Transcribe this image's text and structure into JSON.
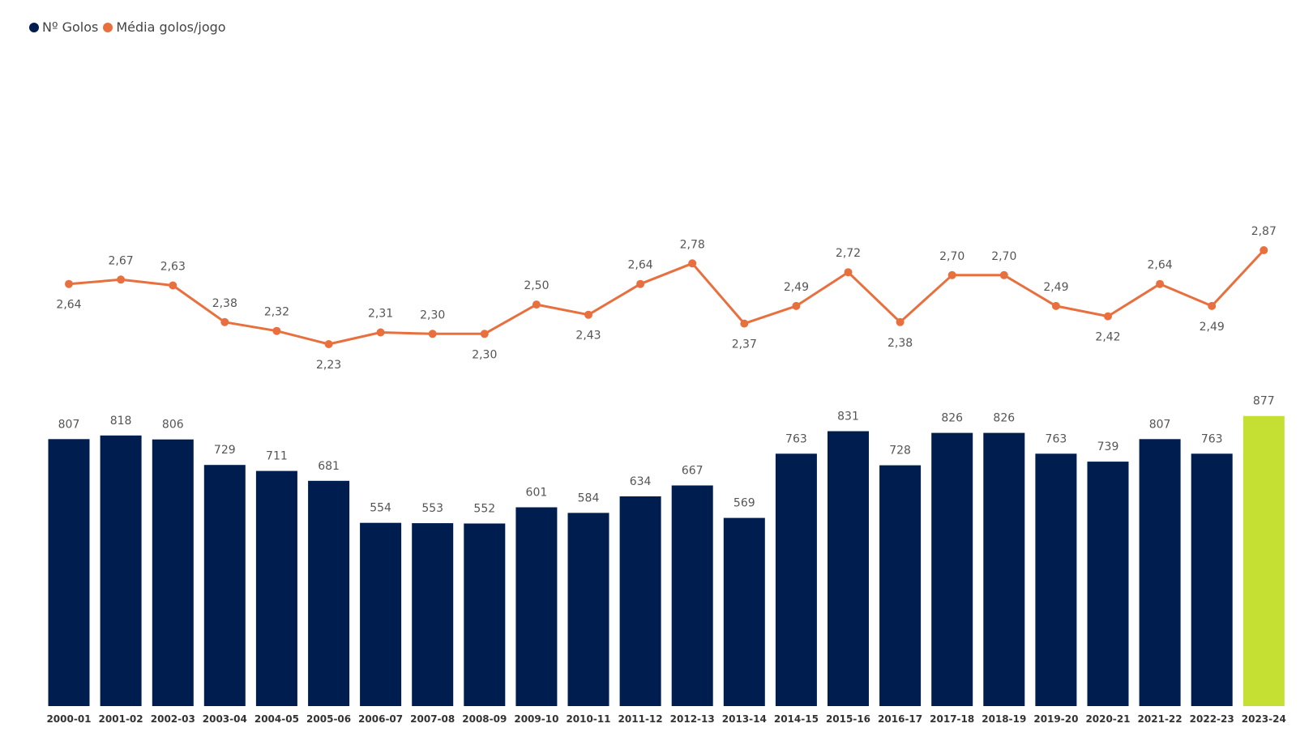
{
  "legend": {
    "series1": "Nº Golos",
    "series2": "Média golos/jogo"
  },
  "colors": {
    "bar": "#001D4F",
    "bar_highlight": "#C5E032",
    "line": "#E8703F",
    "label": "#555555",
    "tick": "#333333"
  },
  "chart_data": {
    "type": "bar+line",
    "title": "",
    "xlabel": "",
    "ylabel": "",
    "legend_position": "top-left",
    "grid": false,
    "categories": [
      "2000-01",
      "2001-02",
      "2002-03",
      "2003-04",
      "2004-05",
      "2005-06",
      "2006-07",
      "2007-08",
      "2008-09",
      "2009-10",
      "2010-11",
      "2011-12",
      "2012-13",
      "2013-14",
      "2014-15",
      "2015-16",
      "2016-17",
      "2017-18",
      "2018-19",
      "2019-20",
      "2020-21",
      "2021-22",
      "2022-23",
      "2023-24"
    ],
    "series": [
      {
        "name": "Nº Golos",
        "type": "bar",
        "values": [
          807,
          818,
          806,
          729,
          711,
          681,
          554,
          553,
          552,
          601,
          584,
          634,
          667,
          569,
          763,
          831,
          728,
          826,
          826,
          763,
          739,
          807,
          763,
          877
        ],
        "labels": [
          "807",
          "818",
          "806",
          "729",
          "711",
          "681",
          "554",
          "553",
          "552",
          "601",
          "584",
          "634",
          "667",
          "569",
          "763",
          "831",
          "728",
          "826",
          "826",
          "763",
          "739",
          "807",
          "763",
          "877"
        ],
        "highlight_index": 23
      },
      {
        "name": "Média golos/jogo",
        "type": "line",
        "values": [
          2.64,
          2.67,
          2.63,
          2.38,
          2.32,
          2.23,
          2.31,
          2.3,
          2.3,
          2.5,
          2.43,
          2.64,
          2.78,
          2.37,
          2.49,
          2.72,
          2.38,
          2.7,
          2.7,
          2.49,
          2.42,
          2.64,
          2.49,
          2.87
        ],
        "labels": [
          "2,64",
          "2,67",
          "2,63",
          "2,38",
          "2,32",
          "2,23",
          "2,31",
          "2,30",
          "2,30",
          "2,50",
          "2,43",
          "2,64",
          "2,78",
          "2,37",
          "2,49",
          "2,72",
          "2,38",
          "2,70",
          "2,70",
          "2,49",
          "2,42",
          "2,64",
          "2,49",
          "2,87"
        ],
        "label_placement": [
          "below",
          "above",
          "above",
          "above",
          "above",
          "below",
          "above",
          "above",
          "below",
          "above",
          "below",
          "above",
          "above",
          "below",
          "above",
          "above",
          "below",
          "above",
          "above",
          "above",
          "below",
          "above",
          "below",
          "above"
        ]
      }
    ],
    "bar_axis_range": [
      0,
      877
    ],
    "line_axis_range": [
      2.23,
      2.87
    ]
  }
}
